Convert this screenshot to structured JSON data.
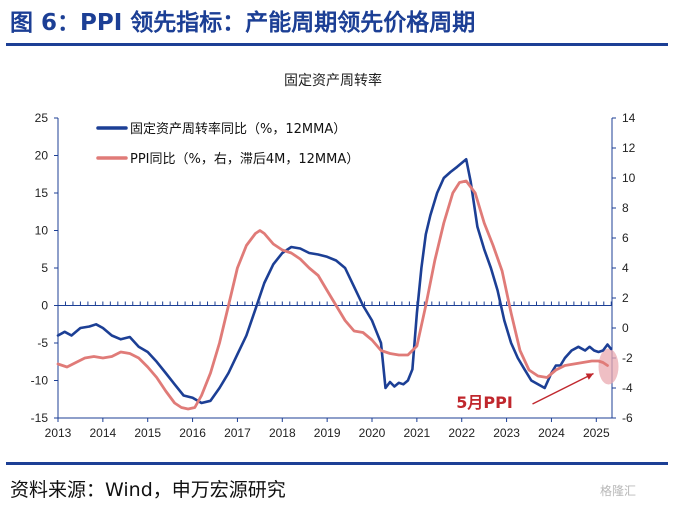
{
  "figure": {
    "title": "图 6：PPI 领先指标：产能周期领先价格周期",
    "source": "资料来源：Wind，申万宏源研究",
    "watermark": "格隆汇"
  },
  "chart_data": {
    "type": "line",
    "title": "固定资产周转率",
    "legend_position": "top-left",
    "grid": false,
    "x_tick_labels": [
      "2013",
      "2014",
      "2015",
      "2016",
      "2017",
      "2018",
      "2019",
      "2020",
      "2021",
      "2022",
      "2023",
      "2024",
      "2025"
    ],
    "xlim": [
      2013.0,
      2025.35
    ],
    "y_left": {
      "ylim": [
        -15,
        25
      ],
      "ticks": [
        -15,
        -10,
        -5,
        0,
        5,
        10,
        15,
        20,
        25
      ]
    },
    "y_right": {
      "ylim": [
        -6,
        14
      ],
      "ticks": [
        -6,
        -4,
        -2,
        0,
        2,
        4,
        6,
        8,
        10,
        12,
        14
      ]
    },
    "annotation": {
      "text": "5月PPI",
      "color": "#c0272d"
    },
    "series": [
      {
        "name": "固定资产周转率同比（%，12MMA）",
        "axis": "left",
        "color": "#1c3f95",
        "x": [
          2013.0,
          2013.15,
          2013.3,
          2013.5,
          2013.7,
          2013.85,
          2014.0,
          2014.2,
          2014.4,
          2014.6,
          2014.8,
          2015.0,
          2015.2,
          2015.4,
          2015.6,
          2015.8,
          2016.0,
          2016.2,
          2016.4,
          2016.6,
          2016.8,
          2017.0,
          2017.2,
          2017.4,
          2017.6,
          2017.8,
          2018.0,
          2018.2,
          2018.4,
          2018.6,
          2018.8,
          2019.0,
          2019.2,
          2019.4,
          2019.6,
          2019.8,
          2020.0,
          2020.1,
          2020.2,
          2020.3,
          2020.4,
          2020.5,
          2020.6,
          2020.7,
          2020.8,
          2020.9,
          2021.0,
          2021.1,
          2021.2,
          2021.3,
          2021.45,
          2021.6,
          2021.75,
          2021.9,
          2022.0,
          2022.1,
          2022.2,
          2022.35,
          2022.5,
          2022.65,
          2022.8,
          2022.95,
          2023.1,
          2023.25,
          2023.4,
          2023.55,
          2023.7,
          2023.85,
          2024.0,
          2024.1,
          2024.2,
          2024.3,
          2024.45,
          2024.6,
          2024.75,
          2024.85,
          2024.95,
          2025.05,
          2025.15,
          2025.25,
          2025.33
        ],
        "values": [
          -4.0,
          -3.5,
          -4.0,
          -3.0,
          -2.8,
          -2.5,
          -3.0,
          -4.0,
          -4.5,
          -4.2,
          -5.5,
          -6.2,
          -7.5,
          -9.0,
          -10.5,
          -12.0,
          -12.3,
          -13.0,
          -12.7,
          -11.0,
          -9.0,
          -6.5,
          -4.0,
          -0.5,
          3.0,
          5.5,
          7.0,
          7.8,
          7.6,
          7.0,
          6.8,
          6.5,
          6.0,
          5.0,
          2.5,
          0.0,
          -2.0,
          -3.5,
          -5.0,
          -11.0,
          -10.2,
          -10.8,
          -10.3,
          -10.5,
          -10.0,
          -8.5,
          -1.0,
          5.0,
          9.5,
          12.0,
          15.0,
          17.0,
          17.8,
          18.5,
          19.0,
          19.5,
          16.5,
          10.5,
          7.5,
          5.0,
          2.0,
          -2.0,
          -5.0,
          -7.0,
          -8.5,
          -10.0,
          -10.5,
          -11.0,
          -9.0,
          -8.0,
          -8.0,
          -7.0,
          -6.0,
          -5.5,
          -6.0,
          -5.5,
          -6.0,
          -6.2,
          -6.0,
          -5.2,
          -5.8
        ]
      },
      {
        "name": "PPI同比（%，右，滞后4M，12MMA）",
        "axis": "right",
        "color": "#e07b78",
        "x": [
          2013.0,
          2013.2,
          2013.4,
          2013.6,
          2013.8,
          2014.0,
          2014.2,
          2014.4,
          2014.6,
          2014.8,
          2015.0,
          2015.2,
          2015.4,
          2015.6,
          2015.75,
          2015.9,
          2016.05,
          2016.2,
          2016.4,
          2016.6,
          2016.8,
          2017.0,
          2017.2,
          2017.4,
          2017.5,
          2017.6,
          2017.8,
          2018.0,
          2018.2,
          2018.4,
          2018.6,
          2018.8,
          2019.0,
          2019.2,
          2019.4,
          2019.6,
          2019.8,
          2020.0,
          2020.2,
          2020.4,
          2020.6,
          2020.8,
          2021.0,
          2021.2,
          2021.4,
          2021.6,
          2021.8,
          2021.95,
          2022.1,
          2022.3,
          2022.5,
          2022.7,
          2022.9,
          2023.1,
          2023.3,
          2023.5,
          2023.7,
          2023.9,
          2024.1,
          2024.3,
          2024.5,
          2024.7,
          2024.9,
          2025.05,
          2025.15,
          2025.25
        ],
        "values": [
          -2.4,
          -2.6,
          -2.3,
          -2.0,
          -1.9,
          -2.0,
          -1.9,
          -1.6,
          -1.7,
          -2.0,
          -2.6,
          -3.3,
          -4.2,
          -5.0,
          -5.3,
          -5.4,
          -5.3,
          -4.5,
          -3.0,
          -1.0,
          1.5,
          4.0,
          5.5,
          6.3,
          6.5,
          6.3,
          5.6,
          5.2,
          5.0,
          4.6,
          4.0,
          3.5,
          2.5,
          1.5,
          0.5,
          -0.2,
          -0.3,
          -0.8,
          -1.5,
          -1.7,
          -1.8,
          -1.8,
          -1.2,
          1.5,
          4.5,
          7.0,
          9.0,
          9.7,
          9.8,
          9.0,
          7.0,
          5.5,
          3.8,
          1.0,
          -1.5,
          -2.8,
          -3.2,
          -3.3,
          -2.8,
          -2.5,
          -2.4,
          -2.3,
          -2.2,
          -2.2,
          -2.3,
          -2.5
        ]
      }
    ]
  }
}
